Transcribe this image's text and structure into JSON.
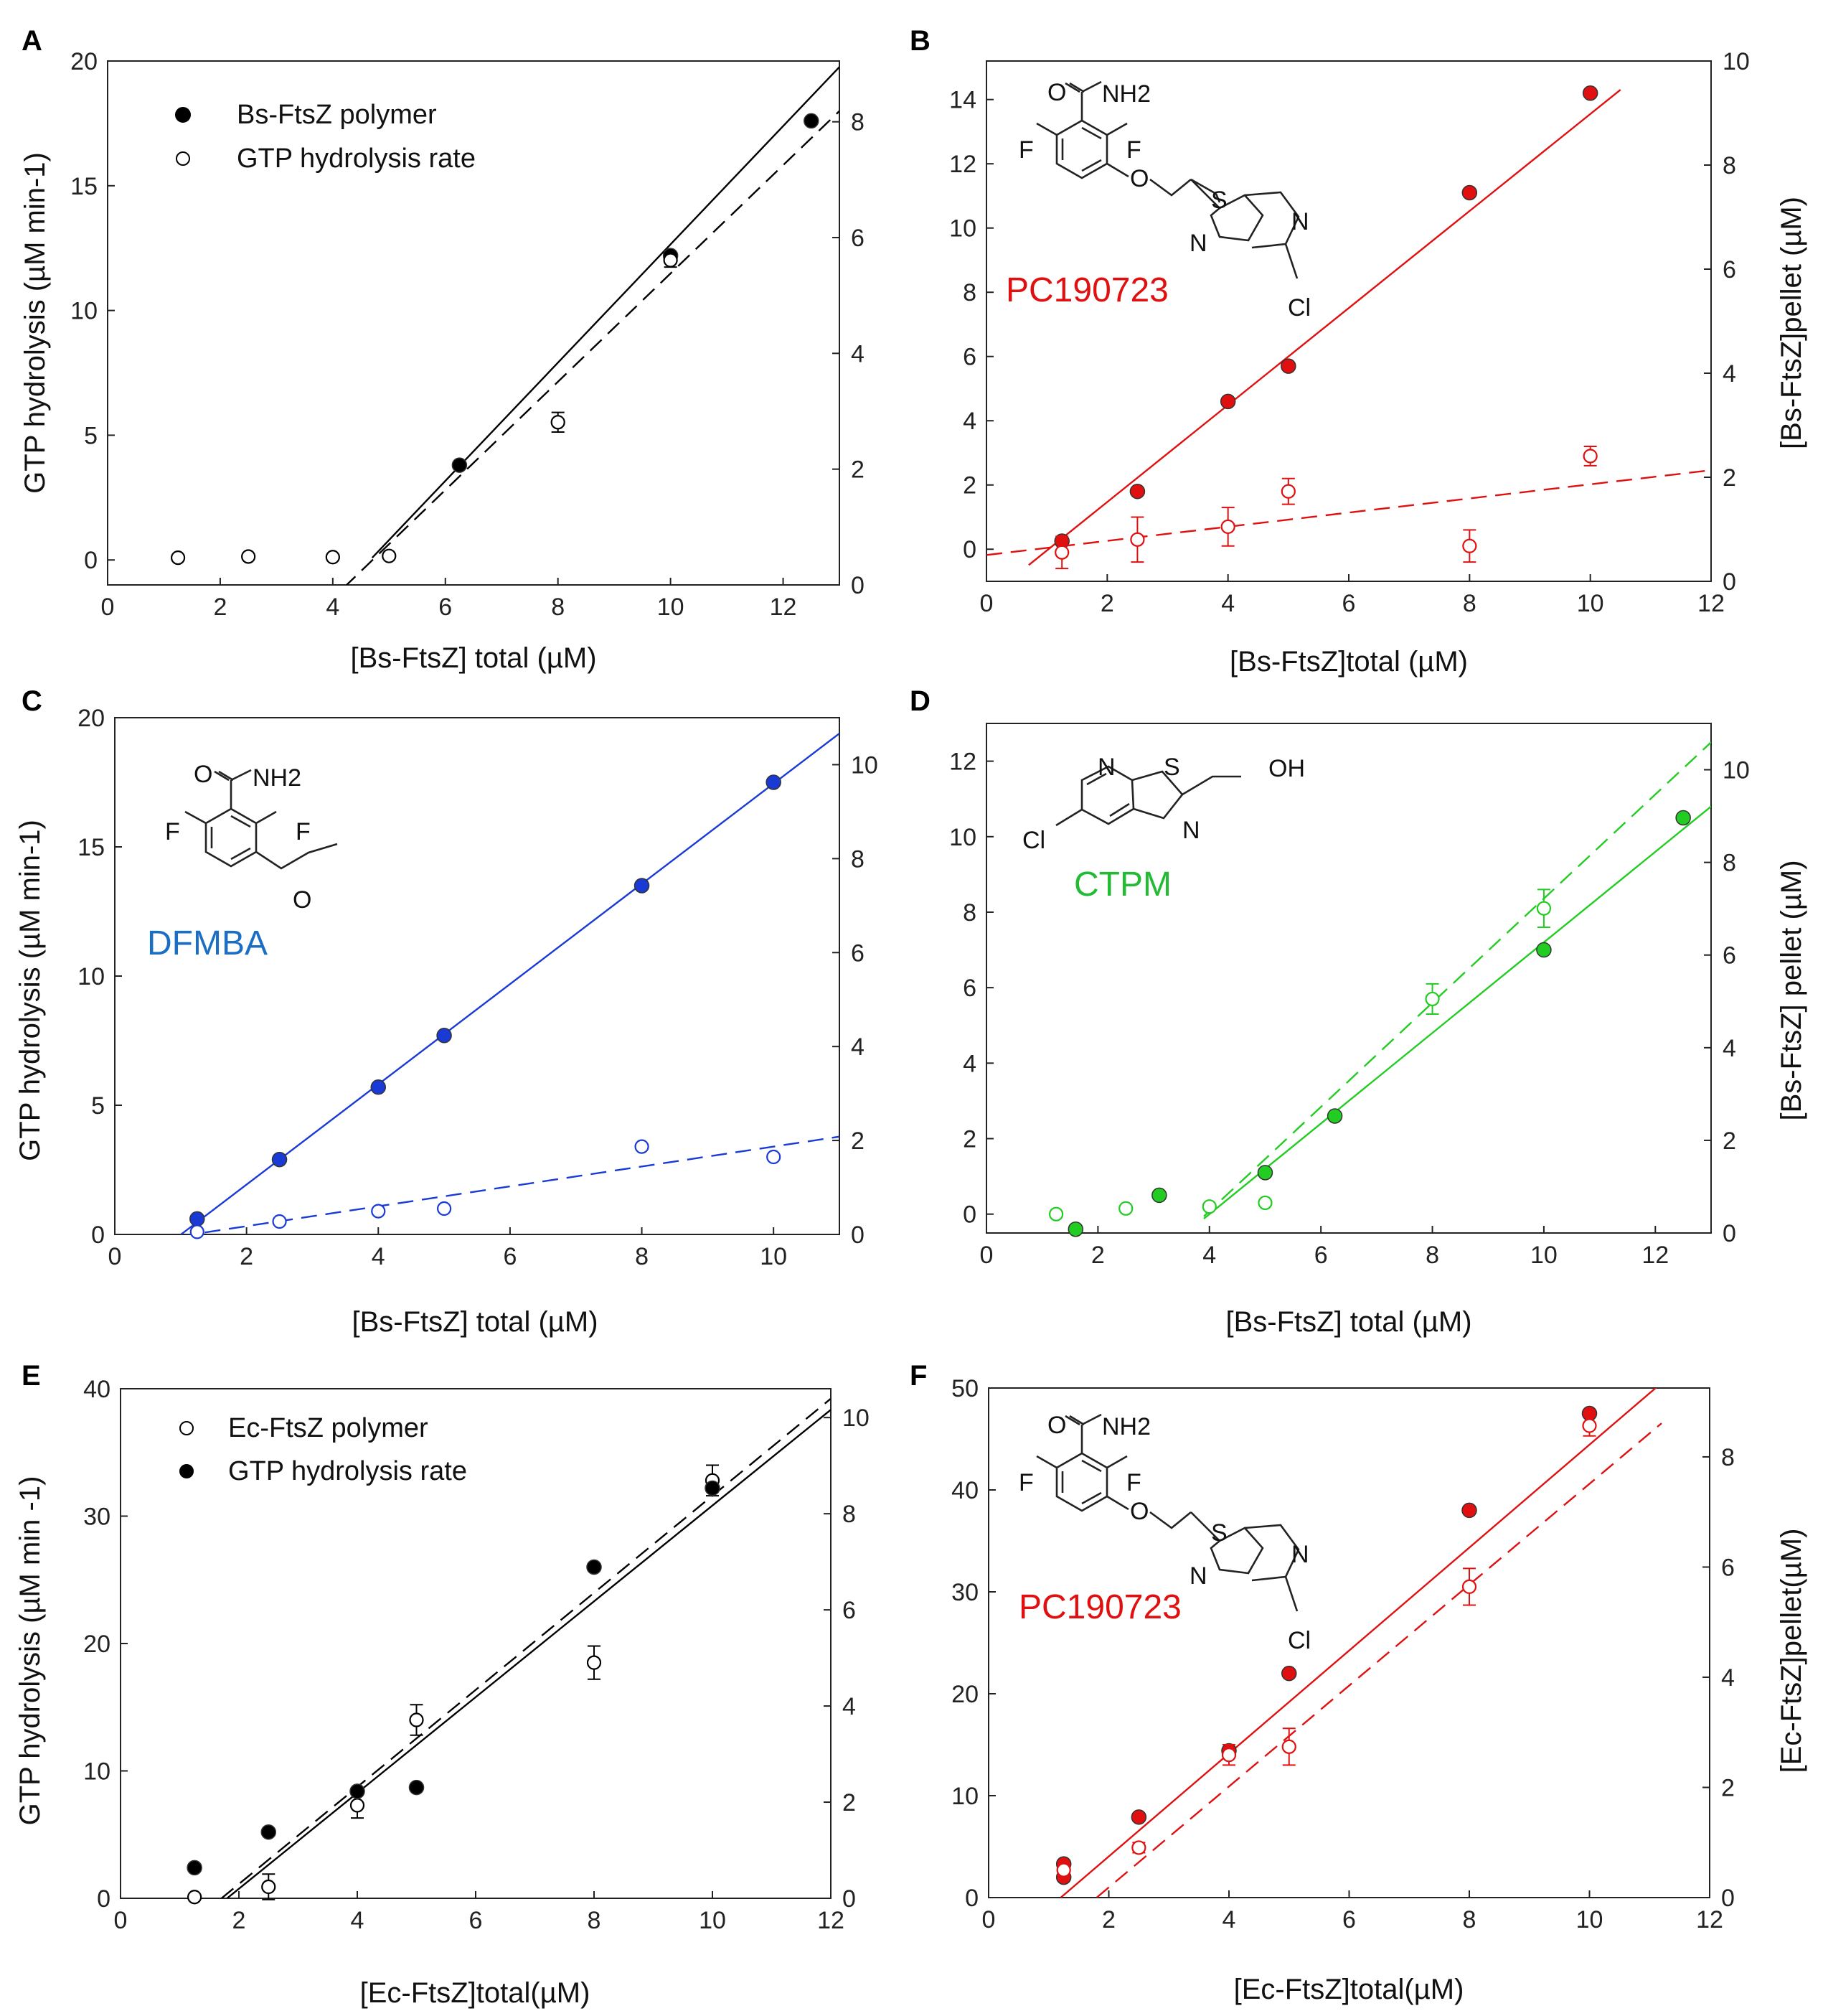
{
  "figure": {
    "panels": [
      {
        "letter": "A",
        "compound": null,
        "compound_color": null,
        "legend": [
          {
            "label": "Bs-FtsZ polymer",
            "marker": "filled"
          },
          {
            "label": "GTP hydrolysis rate",
            "marker": "open"
          }
        ]
      },
      {
        "letter": "B",
        "compound": "PC190723",
        "compound_color": "#e01010",
        "legend": []
      },
      {
        "letter": "C",
        "compound": "DFMBA",
        "compound_color": "#1a6fc4",
        "legend": []
      },
      {
        "letter": "D",
        "compound": "CTPM",
        "compound_color": "#22bb33",
        "legend": []
      },
      {
        "letter": "E",
        "compound": null,
        "compound_color": null,
        "legend": [
          {
            "label": "Ec-FtsZ polymer",
            "marker": "open"
          },
          {
            "label": "GTP hydrolysis rate",
            "marker": "filled"
          }
        ]
      },
      {
        "letter": "F",
        "compound": "PC190723",
        "compound_color": "#e01010",
        "legend": []
      }
    ],
    "chem_labels": {
      "nh2": "NH2",
      "o": "O",
      "f": "F",
      "s": "S",
      "n": "N",
      "cl": "Cl",
      "oh": "OH"
    }
  },
  "chart_data": [
    {
      "panel": "A",
      "type": "scatter",
      "xlabel": "[Bs-FtsZ] total (µM)",
      "ylabel_left": "GTP hydrolysis (µM min-1)",
      "ylabel_right": "",
      "xlim": [
        0,
        13
      ],
      "xticks": [
        0,
        2,
        4,
        6,
        8,
        10,
        12
      ],
      "ylim_left": [
        -1,
        20
      ],
      "yticks_left": [
        0,
        5,
        10,
        15,
        20
      ],
      "ylim_right": [
        0,
        9.05
      ],
      "yticks_right": [
        0,
        2,
        4,
        6,
        8
      ],
      "color": "#000000",
      "series": [
        {
          "name": "Bs-FtsZ polymer",
          "marker": "filled",
          "axis": "left",
          "x": [
            6.25,
            10,
            12.5
          ],
          "y": [
            3.8,
            12.2,
            17.6
          ],
          "yerr": [
            0,
            0,
            0
          ],
          "fit": {
            "x0": 4.7,
            "x1": 13,
            "style": "solid",
            "axis": "left",
            "slope": 2.37,
            "intercept": -11.05
          }
        },
        {
          "name": "GTP hydrolysis rate",
          "marker": "open",
          "axis": "right",
          "x": [
            1.25,
            2.5,
            4,
            5,
            8,
            10
          ],
          "y": [
            0.47,
            0.49,
            0.48,
            0.5,
            2.81,
            5.61
          ],
          "yerr": [
            0,
            0,
            0,
            0,
            0.17,
            0.12
          ],
          "fit": {
            "x0": 4.2,
            "x1": 13,
            "style": "dashed",
            "axis": "right",
            "slope": 0.935,
            "intercept": -3.97
          }
        }
      ]
    },
    {
      "panel": "B",
      "type": "scatter",
      "xlabel": "[Bs-FtsZ]total (µM)",
      "ylabel_left": "",
      "ylabel_right": "[Bs-FtsZ]pellet (µM)",
      "xlim": [
        0,
        12
      ],
      "xticks": [
        0,
        2,
        4,
        6,
        8,
        10,
        12
      ],
      "ylim_left": [
        -1,
        15.2
      ],
      "yticks_left": [
        0,
        2,
        4,
        6,
        8,
        10,
        12,
        14
      ],
      "ylim_right": [
        0,
        10
      ],
      "yticks_right": [
        0,
        2,
        4,
        6,
        8,
        10
      ],
      "color": "#e01010",
      "series": [
        {
          "name": "pellet",
          "marker": "filled",
          "axis": "left",
          "x": [
            1.25,
            2.5,
            4,
            5,
            8,
            10
          ],
          "y": [
            0.25,
            1.8,
            4.6,
            5.7,
            11.1,
            14.2
          ],
          "yerr": [
            0,
            0,
            0,
            0,
            0,
            0
          ],
          "fit": {
            "x0": 0.7,
            "x1": 10.5,
            "style": "solid",
            "axis": "left",
            "slope": 1.51,
            "intercept": -1.55
          }
        },
        {
          "name": "GTP hydrolysis",
          "marker": "open",
          "axis": "left",
          "x": [
            1.25,
            2.5,
            4,
            5,
            8,
            10
          ],
          "y": [
            -0.1,
            0.3,
            0.7,
            1.8,
            0.1,
            2.9
          ],
          "yerr": [
            0.5,
            0.7,
            0.6,
            0.4,
            0.5,
            0.3
          ],
          "fit": {
            "x0": 0,
            "x1": 12,
            "style": "dashed",
            "axis": "left",
            "slope": 0.22,
            "intercept": -0.18
          }
        }
      ]
    },
    {
      "panel": "C",
      "type": "scatter",
      "xlabel": "[Bs-FtsZ] total (µM)",
      "ylabel_left": "GTP hydrolysis (µM min-1)",
      "ylabel_right": "",
      "xlim": [
        0,
        11
      ],
      "xticks": [
        0,
        2,
        4,
        6,
        8,
        10
      ],
      "ylim_left": [
        0,
        20
      ],
      "yticks_left": [
        0,
        5,
        10,
        15,
        20
      ],
      "ylim_right": [
        0,
        11
      ],
      "yticks_right": [
        0,
        2,
        4,
        6,
        8,
        10
      ],
      "color": "#1a3ad6",
      "series": [
        {
          "name": "pellet",
          "marker": "filled",
          "axis": "left",
          "x": [
            1.25,
            2.5,
            4,
            5,
            8,
            10
          ],
          "y": [
            0.6,
            2.9,
            5.7,
            7.7,
            13.5,
            17.5
          ],
          "yerr": [
            0,
            0,
            0,
            0,
            0,
            0
          ],
          "fit": {
            "x0": 1.0,
            "x1": 11,
            "style": "solid",
            "axis": "left",
            "slope": 1.94,
            "intercept": -1.95
          }
        },
        {
          "name": "GTP hydrolysis",
          "marker": "open",
          "axis": "left",
          "x": [
            1.25,
            2.5,
            4,
            5,
            8,
            10
          ],
          "y": [
            0.1,
            0.5,
            0.9,
            1.0,
            3.4,
            3.0
          ],
          "yerr": [
            0,
            0,
            0,
            0,
            0,
            0
          ],
          "fit": {
            "x0": 1.0,
            "x1": 11,
            "style": "dashed",
            "axis": "left",
            "slope": 0.385,
            "intercept": -0.45
          }
        }
      ]
    },
    {
      "panel": "D",
      "type": "scatter",
      "xlabel": "[Bs-FtsZ] total (µM)",
      "ylabel_left": "",
      "ylabel_right": "[Bs-FtsZ] pellet (µM)",
      "xlim": [
        0,
        13
      ],
      "xticks": [
        0,
        2,
        4,
        6,
        8,
        10,
        12
      ],
      "ylim_left": [
        -0.5,
        13
      ],
      "yticks_left": [
        0,
        2,
        4,
        6,
        8,
        10,
        12
      ],
      "ylim_right": [
        0,
        11
      ],
      "yticks_right": [
        0,
        2,
        4,
        6,
        8,
        10
      ],
      "color": "#22cc22",
      "series": [
        {
          "name": "pellet",
          "marker": "filled",
          "axis": "left",
          "x": [
            1.6,
            3.1,
            5,
            6.25,
            10,
            12.5
          ],
          "y": [
            -0.4,
            0.5,
            1.1,
            2.6,
            7.0,
            10.5
          ],
          "yerr": [
            0,
            0,
            0,
            0,
            0,
            0
          ],
          "fit": {
            "x0": 3.9,
            "x1": 13,
            "style": "solid",
            "axis": "left",
            "slope": 1.2,
            "intercept": -4.8
          }
        },
        {
          "name": "GTP hydrolysis",
          "marker": "open",
          "axis": "left",
          "x": [
            1.25,
            2.5,
            4,
            5,
            8,
            10
          ],
          "y": [
            0.0,
            0.15,
            0.2,
            0.3,
            5.7,
            8.1
          ],
          "yerr": [
            0,
            0,
            0,
            0,
            0.4,
            0.5
          ],
          "fit": {
            "x0": 3.9,
            "x1": 13,
            "style": "dashed",
            "axis": "left",
            "slope": 1.38,
            "intercept": -5.44
          }
        }
      ]
    },
    {
      "panel": "E",
      "type": "scatter",
      "xlabel": "[Ec-FtsZ]total(µM)",
      "ylabel_left": "GTP hydrolysis (µM min -1)",
      "ylabel_right": "",
      "xlim": [
        0,
        12
      ],
      "xticks": [
        0,
        2,
        4,
        6,
        8,
        10,
        12
      ],
      "ylim_left": [
        0,
        40
      ],
      "yticks_left": [
        0,
        10,
        20,
        30,
        40
      ],
      "ylim_right": [
        0,
        10.6
      ],
      "yticks_right": [
        0,
        2,
        4,
        6,
        8,
        10
      ],
      "color": "#000000",
      "series": [
        {
          "name": "Ec-FtsZ polymer",
          "marker": "open",
          "axis": "left",
          "x": [
            1.25,
            2.5,
            4,
            5,
            8,
            10
          ],
          "y": [
            0.1,
            0.9,
            7.3,
            14.0,
            18.5,
            32.8
          ],
          "yerr": [
            0,
            1.0,
            1.0,
            1.2,
            1.3,
            1.2
          ],
          "fit": {
            "x0": 1.7,
            "x1": 12,
            "style": "dashed",
            "axis": "left",
            "slope": 3.81,
            "intercept": -6.5
          }
        },
        {
          "name": "GTP hydrolysis rate",
          "marker": "filled",
          "axis": "left",
          "x": [
            1.25,
            2.5,
            4,
            5,
            8,
            10
          ],
          "y": [
            2.4,
            5.2,
            8.4,
            8.7,
            26.0,
            32.2
          ],
          "yerr": [
            0,
            0,
            0,
            0,
            0,
            0
          ],
          "fit": {
            "x0": 1.8,
            "x1": 12,
            "style": "solid",
            "axis": "left",
            "slope": 3.76,
            "intercept": -6.77
          }
        }
      ]
    },
    {
      "panel": "F",
      "type": "scatter",
      "xlabel": "[Ec-FtsZ]total(µM)",
      "ylabel_left": "",
      "ylabel_right": "[Ec-FtsZ]pellet(µM)",
      "xlim": [
        0,
        12
      ],
      "xticks": [
        0,
        2,
        4,
        6,
        8,
        10,
        12
      ],
      "ylim_left": [
        0,
        50
      ],
      "yticks_left": [
        0,
        10,
        20,
        30,
        40,
        50
      ],
      "ylim_right": [
        0,
        9.25
      ],
      "yticks_right": [
        0,
        2,
        4,
        6,
        8
      ],
      "color": "#e01010",
      "series": [
        {
          "name": "pellet",
          "marker": "filled",
          "axis": "left",
          "x": [
            1.25,
            1.25,
            2.5,
            4,
            5,
            8,
            10
          ],
          "y": [
            2.0,
            3.3,
            7.9,
            14.4,
            22.0,
            38.0,
            47.5
          ],
          "yerr": [
            0,
            0,
            0,
            0,
            0,
            0,
            0
          ],
          "fit": {
            "x0": 1.2,
            "x1": 11.2,
            "style": "solid",
            "axis": "left",
            "slope": 5.05,
            "intercept": -6.06
          }
        },
        {
          "name": "GTP hydrolysis",
          "marker": "open",
          "axis": "left",
          "x": [
            1.25,
            2.5,
            4,
            5,
            8,
            10
          ],
          "y": [
            2.7,
            4.9,
            14.0,
            14.8,
            30.5,
            46.3
          ],
          "yerr": [
            0.5,
            0.5,
            1.0,
            1.8,
            1.8,
            1.0
          ],
          "fit": {
            "x0": 1.8,
            "x1": 11.2,
            "style": "dashed",
            "axis": "left",
            "slope": 4.95,
            "intercept": -8.9
          }
        }
      ]
    }
  ]
}
